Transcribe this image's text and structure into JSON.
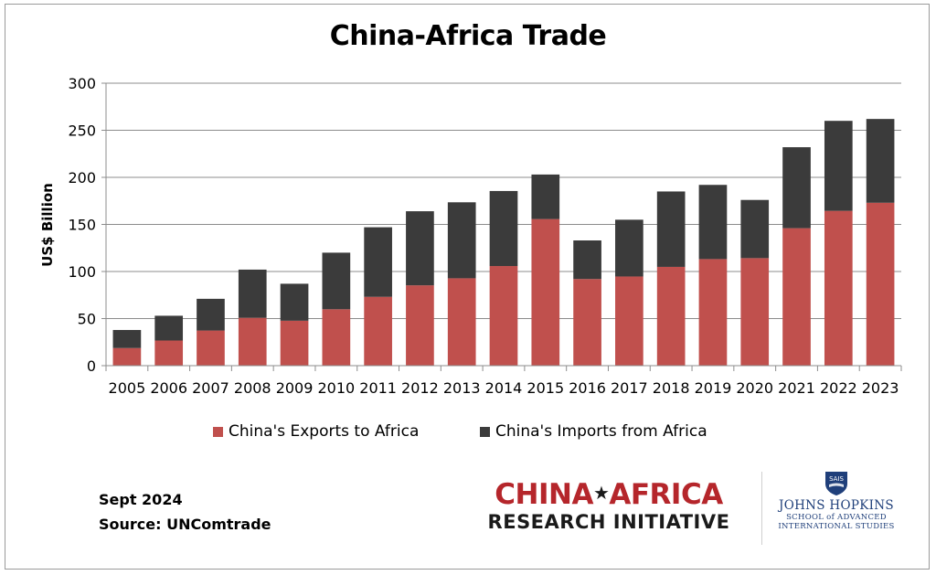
{
  "chart_data": {
    "type": "bar",
    "stacked": true,
    "title": "China-Africa Trade",
    "ylabel": "US$ Billion",
    "xlabel": "",
    "ylim": [
      0,
      300
    ],
    "yticks": [
      0,
      50,
      100,
      150,
      200,
      250,
      300
    ],
    "grid": true,
    "legend_position": "bottom",
    "categories": [
      "2005",
      "2006",
      "2007",
      "2008",
      "2009",
      "2010",
      "2011",
      "2012",
      "2013",
      "2014",
      "2015",
      "2016",
      "2017",
      "2018",
      "2019",
      "2020",
      "2021",
      "2022",
      "2023"
    ],
    "series": [
      {
        "name": "China's Exports to Africa",
        "color": "#c0504d",
        "values": [
          18.7,
          26.7,
          37.3,
          50.8,
          47.7,
          59.9,
          73.1,
          85.3,
          92.8,
          105.8,
          155.7,
          92.0,
          94.7,
          104.9,
          113.2,
          114.2,
          146.0,
          164.4,
          173.0
        ]
      },
      {
        "name": "China's Imports from Africa",
        "color": "#3b3b3b",
        "values": [
          19.2,
          26.3,
          33.7,
          51.2,
          39.3,
          60.1,
          73.9,
          78.7,
          80.7,
          79.7,
          47.3,
          41.0,
          60.3,
          80.1,
          78.8,
          61.8,
          86.0,
          95.6,
          89.0
        ]
      }
    ]
  },
  "footer": {
    "date": "Sept 2024",
    "source": "Source: UNComtrade"
  },
  "logos": {
    "car_line1_left": "CHINA",
    "car_line1_right": "AFRICA",
    "car_line2": "RESEARCH INITIATIVE",
    "jhu_shield_text": "SAIS",
    "jhu_name": "JOHNS HOPKINS",
    "jhu_sub1": "SCHOOL of ADVANCED",
    "jhu_sub2": "INTERNATIONAL STUDIES"
  }
}
